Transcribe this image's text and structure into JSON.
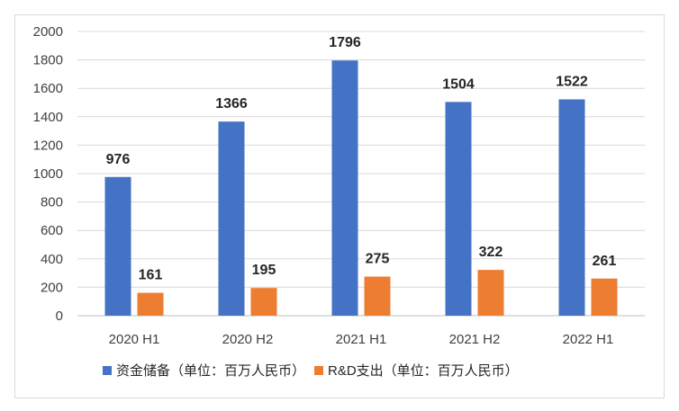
{
  "chart_data": {
    "type": "bar",
    "categories": [
      "2020 H1",
      "2020 H2",
      "2021 H1",
      "2021 H2",
      "2022 H1"
    ],
    "series": [
      {
        "name": "资金储备（单位：百万人民币）",
        "values": [
          976,
          1366,
          1796,
          1504,
          1522
        ],
        "color": "#4472C4"
      },
      {
        "name": "R&D支出（单位：百万人民币）",
        "values": [
          161,
          195,
          275,
          322,
          261
        ],
        "color": "#ED7D31"
      }
    ],
    "y_ticks": [
      "0",
      "200",
      "400",
      "600",
      "800",
      "1000",
      "1200",
      "1400",
      "1600",
      "1800",
      "2000"
    ],
    "ylim": [
      0,
      2000
    ],
    "grid": true,
    "legend_position": "bottom",
    "title": "",
    "xlabel": "",
    "ylabel": ""
  }
}
